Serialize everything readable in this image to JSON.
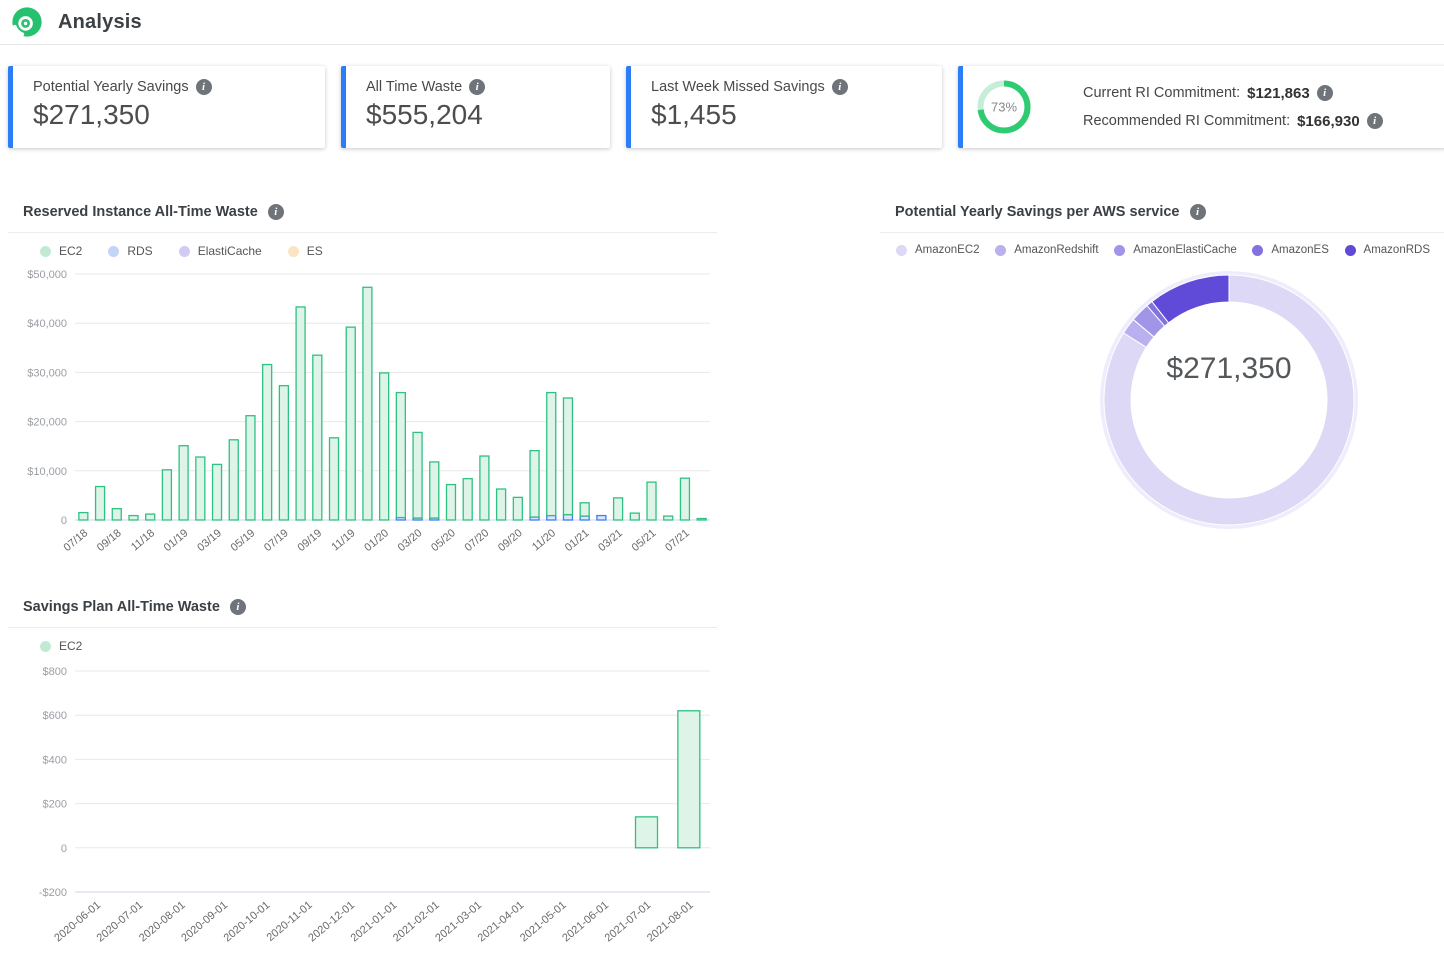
{
  "header": {
    "title": "Analysis",
    "logo": "spot-logo"
  },
  "icons": {
    "info": "i"
  },
  "cards": [
    {
      "label": "Potential Yearly Savings",
      "value": "$271,350"
    },
    {
      "label": "All Time Waste",
      "value": "$555,204"
    },
    {
      "label": "Last Week Missed Savings",
      "value": "$1,455"
    },
    {
      "ring": {
        "percent": 73,
        "label": "73%"
      },
      "rows": [
        {
          "label": "Current RI Commitment:",
          "value": "$121,863"
        },
        {
          "label": "Recommended RI Commitment:",
          "value": "$166,930"
        }
      ]
    }
  ],
  "colors": {
    "accent_blue": "#2c7ef8",
    "green": "#2fc181",
    "green_fill": "#def4e8",
    "ring_green": "#2ecb73",
    "ring_track": "#c6edd7",
    "blue_stroke": "#3f7df6",
    "blue_fill": "#dbe7fb",
    "grid": "#e8e8e8",
    "axis_line": "#ccd6eb"
  },
  "chart_data": [
    {
      "type": "bar",
      "stacked": true,
      "title": "Reserved Instance All-Time Waste",
      "legend": [
        {
          "label": "EC2",
          "dot": "#c2ead3"
        },
        {
          "label": "RDS",
          "dot": "#c3d4f7"
        },
        {
          "label": "ElastiCache",
          "dot": "#d3c9f5"
        },
        {
          "label": "ES",
          "dot": "#fae4c3"
        }
      ],
      "categories": [
        "07/18",
        "08/18",
        "09/18",
        "10/18",
        "11/18",
        "12/18",
        "01/19",
        "02/19",
        "03/19",
        "04/19",
        "05/19",
        "06/19",
        "07/19",
        "08/19",
        "09/19",
        "10/19",
        "11/19",
        "12/19",
        "01/20",
        "02/20",
        "03/20",
        "04/20",
        "05/20",
        "06/20",
        "07/20",
        "08/20",
        "09/20",
        "10/20",
        "11/20",
        "12/20",
        "01/21",
        "02/21",
        "03/21",
        "04/21",
        "05/21",
        "06/21",
        "07/21",
        "08/21"
      ],
      "x_tick_every": 2,
      "ylim": [
        0,
        50000
      ],
      "yticks": [
        {
          "value": 50000,
          "label": "$50,000"
        },
        {
          "value": 40000,
          "label": "$40,000"
        },
        {
          "value": 30000,
          "label": "$30,000"
        },
        {
          "value": 20000,
          "label": "$20,000"
        },
        {
          "value": 10000,
          "label": "$10,000"
        },
        {
          "value": 0,
          "label": "0"
        }
      ],
      "series": [
        {
          "name": "RDS",
          "fill": "#dbe7fb",
          "stroke": "#3f7df6",
          "values": [
            0,
            0,
            0,
            0,
            0,
            0,
            0,
            0,
            0,
            0,
            0,
            0,
            0,
            0,
            0,
            0,
            0,
            0,
            0,
            500,
            400,
            400,
            0,
            0,
            0,
            0,
            0,
            600,
            900,
            1100,
            800,
            900,
            0,
            0,
            0,
            0,
            0,
            0
          ]
        },
        {
          "name": "EC2",
          "fill": "#def4e8",
          "stroke": "#2fc181",
          "values": [
            1500,
            6800,
            2300,
            900,
            1200,
            10200,
            15100,
            12800,
            11300,
            16300,
            21200,
            31600,
            27300,
            43300,
            33500,
            16700,
            39200,
            47300,
            29900,
            25400,
            17400,
            11400,
            7200,
            8400,
            13000,
            6300,
            4600,
            13500,
            25000,
            23700,
            2700,
            0,
            4500,
            1400,
            7700,
            800,
            8500,
            300
          ]
        },
        {
          "name": "ElastiCache",
          "fill": "#e7e1fa",
          "stroke": "#8d7ce0",
          "values": [
            0,
            0,
            0,
            0,
            0,
            0,
            0,
            0,
            0,
            0,
            0,
            0,
            0,
            0,
            0,
            0,
            0,
            0,
            0,
            0,
            0,
            0,
            0,
            0,
            0,
            0,
            0,
            0,
            0,
            0,
            0,
            0,
            0,
            0,
            0,
            0,
            0,
            0
          ]
        },
        {
          "name": "ES",
          "fill": "#fdf0dc",
          "stroke": "#f0b859",
          "values": [
            0,
            0,
            0,
            0,
            0,
            0,
            0,
            0,
            0,
            0,
            0,
            0,
            0,
            0,
            0,
            0,
            0,
            0,
            0,
            0,
            0,
            0,
            0,
            0,
            0,
            0,
            0,
            0,
            0,
            0,
            0,
            0,
            0,
            0,
            0,
            0,
            0,
            0
          ]
        }
      ]
    },
    {
      "type": "donut",
      "title": "Potential Yearly Savings per AWS service",
      "center_label": "$271,350",
      "total": 271350,
      "slices": [
        {
          "name": "AmazonEC2",
          "value": 228000,
          "color": "#dcd8f6"
        },
        {
          "name": "AmazonRedshift",
          "value": 5700,
          "color": "#bbb0ef"
        },
        {
          "name": "AmazonElastiCache",
          "value": 6750,
          "color": "#a195e8"
        },
        {
          "name": "AmazonES",
          "value": 2200,
          "color": "#8172de"
        },
        {
          "name": "AmazonRDS",
          "value": 28700,
          "color": "#5f4bd8"
        }
      ]
    },
    {
      "type": "bar",
      "stacked": false,
      "title": "Savings Plan All-Time Waste",
      "legend": [
        {
          "label": "EC2",
          "dot": "#c2ead3"
        }
      ],
      "categories": [
        "2020-06-01",
        "2020-07-01",
        "2020-08-01",
        "2020-09-01",
        "2020-10-01",
        "2020-11-01",
        "2020-12-01",
        "2021-01-01",
        "2021-02-01",
        "2021-03-01",
        "2021-04-01",
        "2021-05-01",
        "2021-06-01",
        "2021-07-01",
        "2021-08-01"
      ],
      "x_tick_every": 1,
      "ylim": [
        -200,
        800
      ],
      "yticks": [
        {
          "value": 800,
          "label": "$800"
        },
        {
          "value": 600,
          "label": "$600"
        },
        {
          "value": 400,
          "label": "$400"
        },
        {
          "value": 200,
          "label": "$200"
        },
        {
          "value": 0,
          "label": "0"
        },
        {
          "value": -200,
          "label": "-$200"
        }
      ],
      "series": [
        {
          "name": "EC2",
          "fill": "#def4e8",
          "stroke": "#2fc181",
          "values": [
            0,
            0,
            0,
            0,
            0,
            0,
            0,
            0,
            0,
            0,
            0,
            0,
            0,
            140,
            620
          ]
        }
      ]
    }
  ]
}
